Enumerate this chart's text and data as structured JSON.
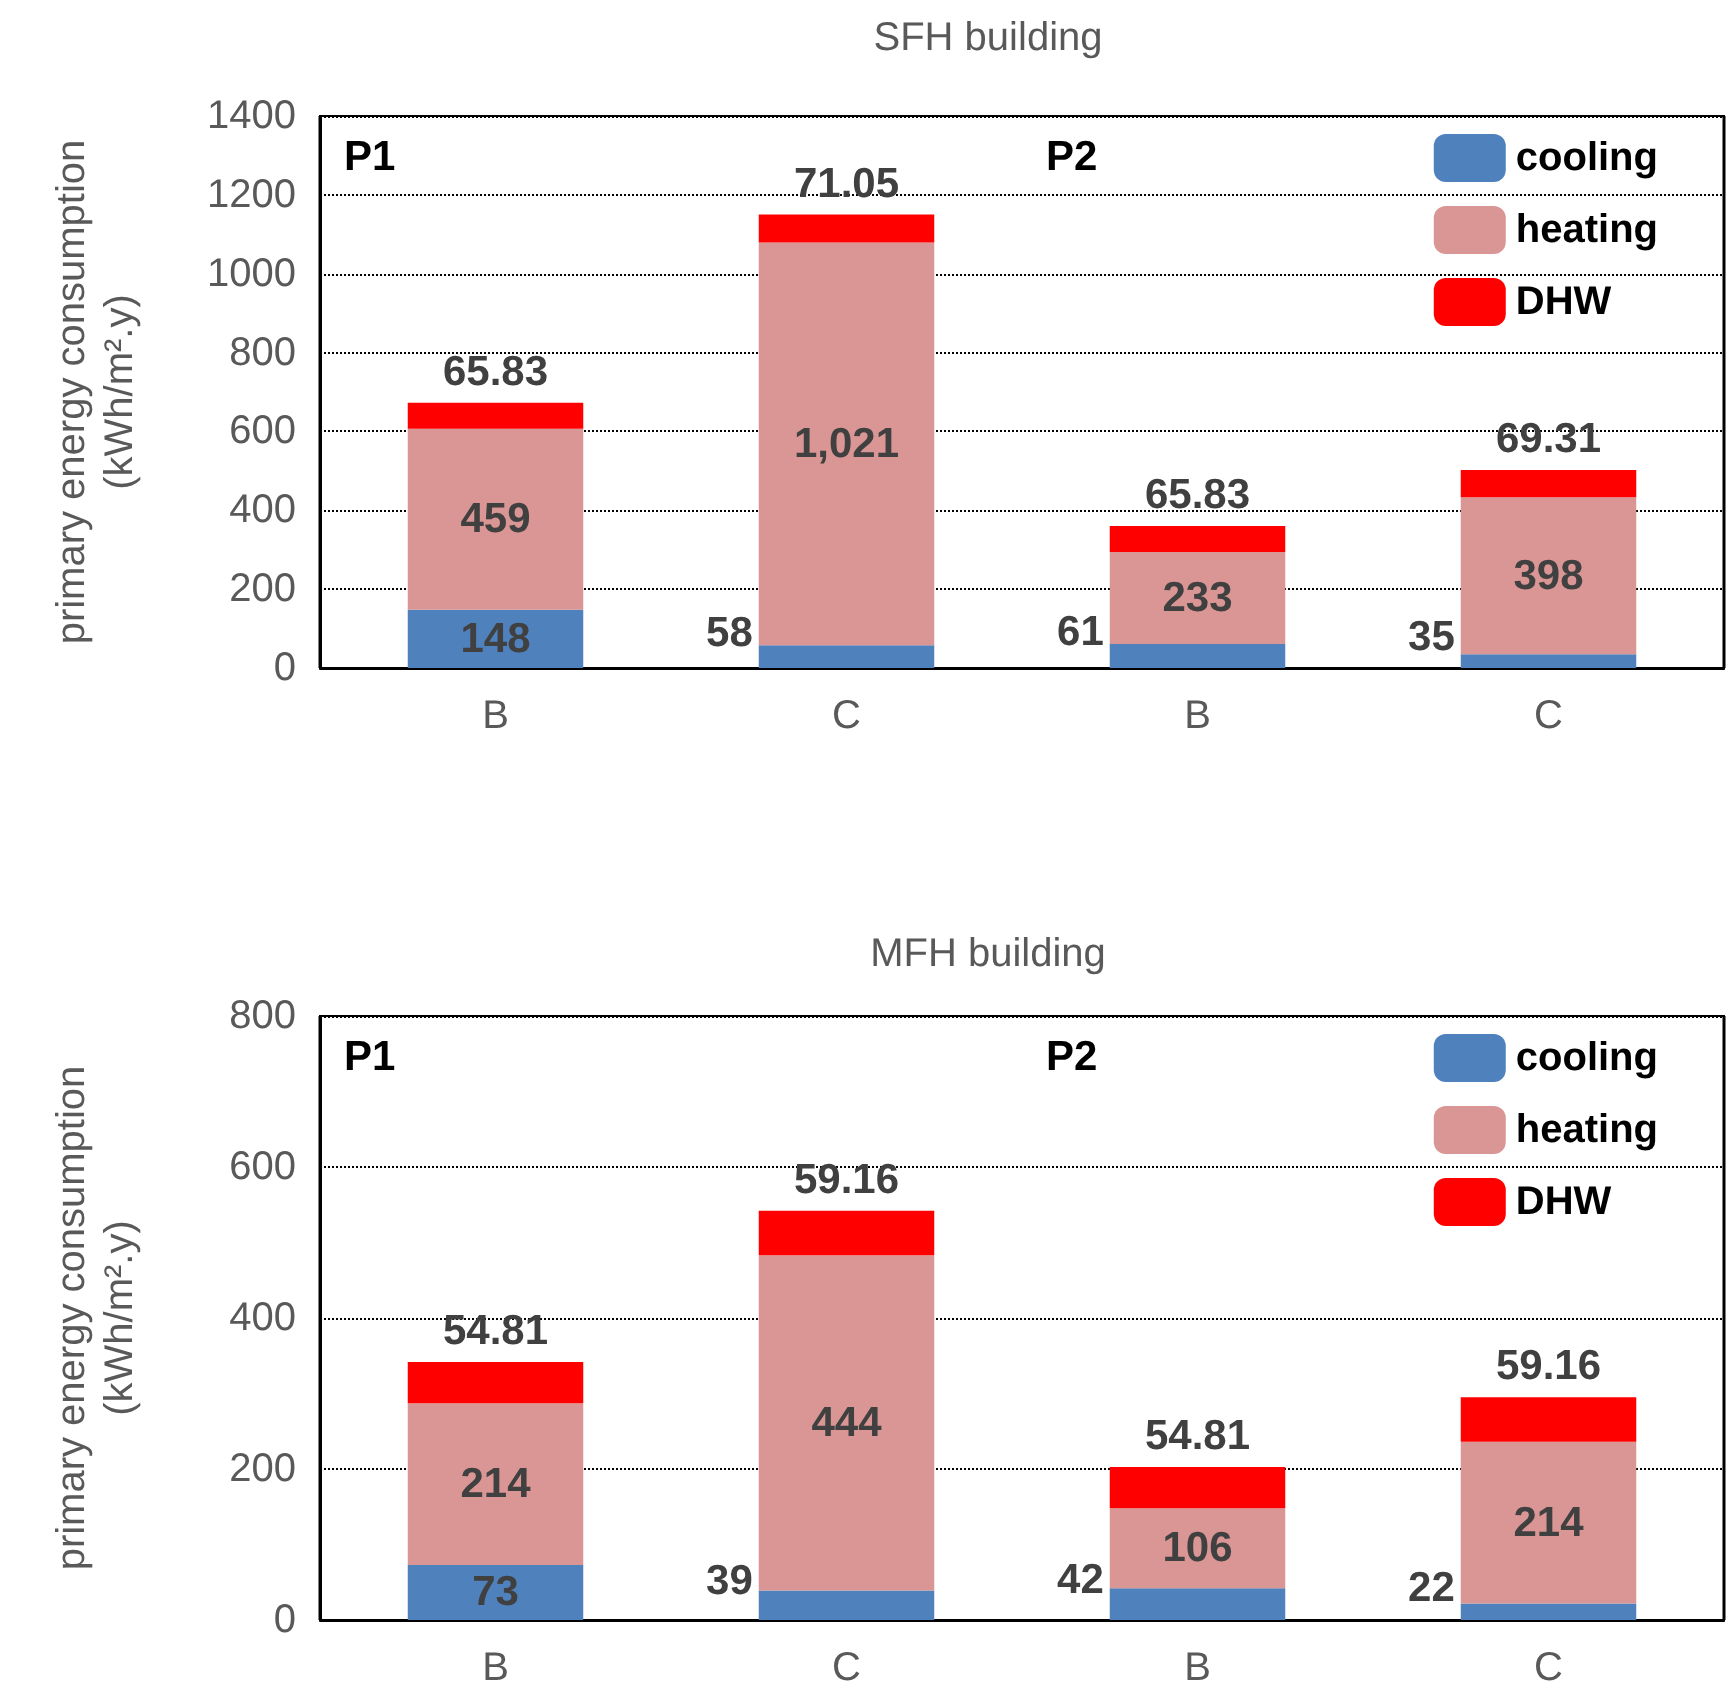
{
  "chart_data": [
    {
      "type": "bar",
      "title": "SFH building",
      "ylabel": "primary energy consumption\n(kWh/m².y)",
      "categories": [
        "B",
        "C",
        "B",
        "C"
      ],
      "stacked": true,
      "ylim": [
        0,
        1400
      ],
      "yticks": [
        0,
        200,
        400,
        600,
        800,
        1000,
        1200,
        1400
      ],
      "grid": "y",
      "legend": "top right",
      "annotations": [
        "P1",
        "P2"
      ],
      "series": [
        {
          "name": "cooling",
          "color": "#4f81bd",
          "values": [
            148,
            58,
            61,
            35
          ],
          "value_labels": [
            "148",
            "58",
            "61",
            "35"
          ]
        },
        {
          "name": "heating",
          "color": "#d99694",
          "values": [
            459,
            1021,
            233,
            398
          ],
          "value_labels": [
            "459",
            "1,021",
            "233",
            "398"
          ]
        },
        {
          "name": "DHW",
          "color": "#ff0000",
          "values": [
            65.83,
            71.05,
            65.83,
            69.31
          ],
          "value_labels": [
            "65.83",
            "71.05",
            "65.83",
            "69.31"
          ]
        }
      ]
    },
    {
      "type": "bar",
      "title": "MFH building",
      "ylabel": "primary energy consumption\n(kWh/m².y)",
      "categories": [
        "B",
        "C",
        "B",
        "C"
      ],
      "stacked": true,
      "ylim": [
        0,
        800
      ],
      "yticks": [
        0,
        200,
        400,
        600,
        800
      ],
      "grid": "y",
      "legend": "top right",
      "annotations": [
        "P1",
        "P2"
      ],
      "series": [
        {
          "name": "cooling",
          "color": "#4f81bd",
          "values": [
            73,
            39,
            42,
            22
          ],
          "value_labels": [
            "73",
            "39",
            "42",
            "22"
          ]
        },
        {
          "name": "heating",
          "color": "#d99694",
          "values": [
            214,
            444,
            106,
            214
          ],
          "value_labels": [
            "214",
            "444",
            "106",
            "214"
          ]
        },
        {
          "name": "DHW",
          "color": "#ff0000",
          "values": [
            54.81,
            59.16,
            54.81,
            59.16
          ],
          "value_labels": [
            "54.81",
            "59.16",
            "54.81",
            "59.16"
          ]
        }
      ]
    }
  ]
}
